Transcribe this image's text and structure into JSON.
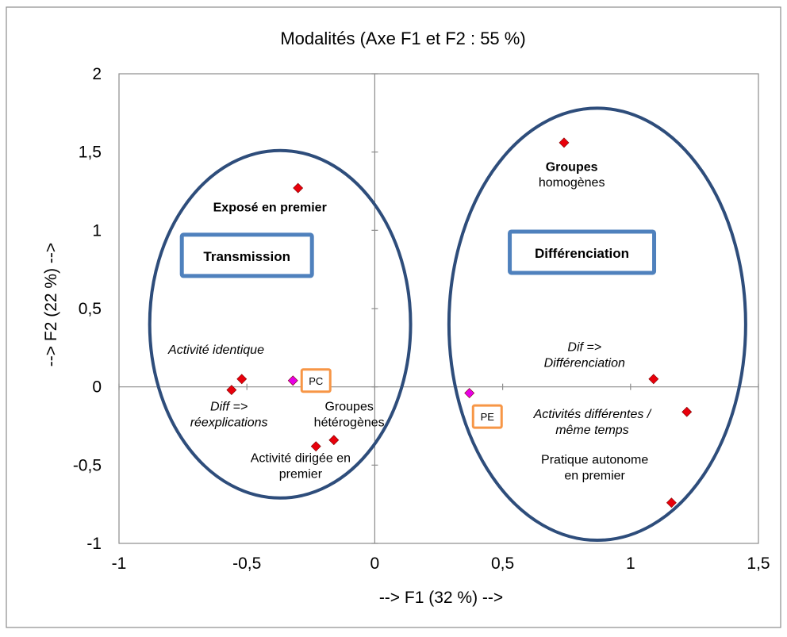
{
  "chart_data": {
    "type": "scatter",
    "title": "Modalités (Axe F1 et F2 : 55 %)",
    "xlabel": "--> F1 (32 %) -->",
    "ylabel": "--> F2 (22 %) -->",
    "xlim": [
      -1,
      1.5
    ],
    "ylim": [
      -1,
      2
    ],
    "x_ticks": [
      "-1",
      "-0,5",
      "0",
      "0,5",
      "1",
      "1,5"
    ],
    "y_ticks": [
      "2",
      "1,5",
      "1",
      "0,5",
      "0",
      "-0,5",
      "-1"
    ],
    "grid": false,
    "points": [
      {
        "x": -0.3,
        "y": 1.27,
        "color": "#e8000b"
      },
      {
        "x": -0.52,
        "y": 0.05,
        "color": "#e8000b"
      },
      {
        "x": -0.56,
        "y": -0.02,
        "color": "#e8000b"
      },
      {
        "x": -0.32,
        "y": 0.04,
        "color": "#e600e6"
      },
      {
        "x": -0.16,
        "y": -0.34,
        "color": "#e8000b"
      },
      {
        "x": -0.23,
        "y": -0.38,
        "color": "#e8000b"
      },
      {
        "x": 0.74,
        "y": 1.56,
        "color": "#e8000b"
      },
      {
        "x": 0.37,
        "y": -0.04,
        "color": "#e600e6"
      },
      {
        "x": 1.09,
        "y": 0.05,
        "color": "#e8000b"
      },
      {
        "x": 1.22,
        "y": -0.16,
        "color": "#e8000b"
      },
      {
        "x": 1.16,
        "y": -0.74,
        "color": "#e8000b"
      }
    ],
    "annotations": [
      {
        "lines": [
          "Exposé en premier"
        ],
        "x": -0.41,
        "y": 1.12,
        "bold": true,
        "italic": false
      },
      {
        "lines": [
          "Activité identique"
        ],
        "x": -0.62,
        "y": 0.21,
        "bold": false,
        "italic": true
      },
      {
        "lines": [
          "Diff =>",
          "réexplications"
        ],
        "x": -0.57,
        "y": -0.15,
        "bold": false,
        "italic": true
      },
      {
        "lines": [
          "Groupes",
          "hétérogènes"
        ],
        "x": -0.1,
        "y": -0.15,
        "bold": false,
        "italic": false
      },
      {
        "lines": [
          "Activité dirigée en",
          "premier"
        ],
        "x": -0.29,
        "y": -0.48,
        "bold": false,
        "italic": false
      },
      {
        "lines": [
          "Groupes"
        ],
        "x": 0.77,
        "y": 1.38,
        "bold": true,
        "italic": false
      },
      {
        "lines": [
          "homogènes"
        ],
        "x": 0.77,
        "y": 1.28,
        "bold": false,
        "italic": false
      },
      {
        "lines": [
          "Dif =>",
          "Différenciation"
        ],
        "x": 0.82,
        "y": 0.23,
        "bold": false,
        "italic": true
      },
      {
        "lines": [
          "Activités différentes /",
          "même temps"
        ],
        "x": 0.85,
        "y": -0.2,
        "bold": false,
        "italic": true
      },
      {
        "lines": [
          "Pratique autonome",
          "en premier"
        ],
        "x": 0.86,
        "y": -0.49,
        "bold": false,
        "italic": false
      }
    ],
    "boxes": [
      {
        "label": "Transmission",
        "color": "#4f81bd",
        "x": -0.5,
        "y": 0.84,
        "bold": true
      },
      {
        "label": "Différenciation",
        "color": "#4f81bd",
        "x": 0.81,
        "y": 0.86,
        "bold": true
      },
      {
        "label": "PC",
        "color": "#f79646",
        "x": -0.23,
        "y": 0.04,
        "bold": false
      },
      {
        "label": "PE",
        "color": "#f79646",
        "x": 0.44,
        "y": -0.19,
        "bold": false
      }
    ],
    "ellipses": [
      {
        "cx": -0.37,
        "cy": 0.4,
        "rx": 0.51,
        "ry": 1.11,
        "color": "#2e4d7b"
      },
      {
        "cx": 0.87,
        "cy": 0.4,
        "rx": 0.58,
        "ry": 1.38,
        "color": "#2e4d7b"
      }
    ]
  }
}
